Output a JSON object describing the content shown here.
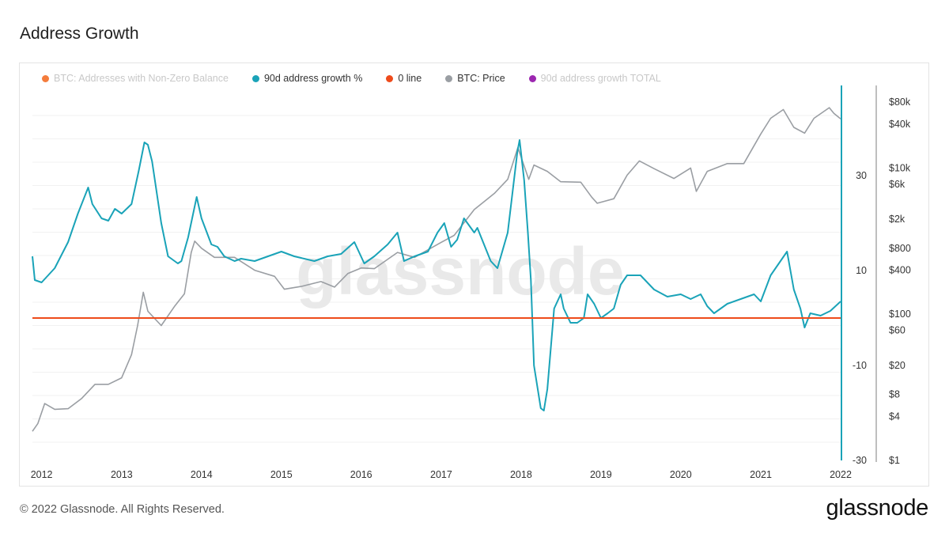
{
  "page": {
    "title": "Address Growth",
    "copyright": "© 2022 Glassnode. All Rights Reserved.",
    "brand": "glassnode",
    "watermark": "glassnode"
  },
  "legend": [
    {
      "label": "BTC: Addresses with Non-Zero Balance",
      "color": "#f47c3c",
      "active": false
    },
    {
      "label": "90d address growth %",
      "color": "#1aa3b8",
      "active": true
    },
    {
      "label": "0 line",
      "color": "#ee4b1b",
      "active": true
    },
    {
      "label": "BTC: Price",
      "color": "#9a9ea3",
      "active": true
    },
    {
      "label": "90d address growth TOTAL",
      "color": "#9c27b0",
      "active": false
    }
  ],
  "chart_data": {
    "type": "line",
    "title": "Address Growth",
    "x_ticks": [
      "2012",
      "2013",
      "2014",
      "2015",
      "2016",
      "2017",
      "2018",
      "2019",
      "2020",
      "2021",
      "2022"
    ],
    "xlim": [
      "2011-11-20",
      "2022-01-01"
    ],
    "y_left_ticks": [
      30,
      10,
      -10,
      -30
    ],
    "y_left_lim": [
      -30,
      47
    ],
    "y_right_ticks": [
      "$80k",
      "$40k",
      "$10k",
      "$6k",
      "$2k",
      "$800",
      "$400",
      "$100",
      "$60",
      "$20",
      "$8",
      "$4",
      "$1"
    ],
    "y_right_values": [
      80000,
      40000,
      10000,
      6000,
      2000,
      800,
      400,
      100,
      60,
      20,
      8,
      4,
      1
    ],
    "y_right_scale": "log",
    "y_right_lim": [
      1,
      100000
    ],
    "grid": true,
    "legend_position": "top-left",
    "series": [
      {
        "name": "90d address growth %",
        "axis": "left",
        "color": "#1aa3b8",
        "points": [
          [
            "2011-11-20",
            13.0
          ],
          [
            "2011-12-01",
            8.0
          ],
          [
            "2012-01-01",
            7.5
          ],
          [
            "2012-03-01",
            10.5
          ],
          [
            "2012-05-01",
            16.0
          ],
          [
            "2012-06-15",
            22.0
          ],
          [
            "2012-08-01",
            27.5
          ],
          [
            "2012-08-20",
            24.0
          ],
          [
            "2012-10-01",
            21.0
          ],
          [
            "2012-11-01",
            20.5
          ],
          [
            "2012-12-01",
            23.0
          ],
          [
            "2013-01-01",
            22.0
          ],
          [
            "2013-02-15",
            24.0
          ],
          [
            "2013-03-20",
            31.0
          ],
          [
            "2013-04-15",
            37.0
          ],
          [
            "2013-05-01",
            36.5
          ],
          [
            "2013-05-20",
            33.0
          ],
          [
            "2013-07-01",
            20.0
          ],
          [
            "2013-08-01",
            13.0
          ],
          [
            "2013-09-15",
            11.5
          ],
          [
            "2013-10-01",
            12.0
          ],
          [
            "2013-11-01",
            17.0
          ],
          [
            "2013-12-10",
            25.5
          ],
          [
            "2014-01-01",
            21.0
          ],
          [
            "2014-02-15",
            15.5
          ],
          [
            "2014-03-15",
            15.0
          ],
          [
            "2014-04-15",
            13.0
          ],
          [
            "2014-06-01",
            12.0
          ],
          [
            "2014-07-01",
            12.5
          ],
          [
            "2014-09-01",
            12.0
          ],
          [
            "2014-11-01",
            13.0
          ],
          [
            "2015-01-01",
            14.0
          ],
          [
            "2015-03-01",
            13.0
          ],
          [
            "2015-06-01",
            12.0
          ],
          [
            "2015-08-01",
            13.0
          ],
          [
            "2015-10-01",
            13.5
          ],
          [
            "2015-12-01",
            16.0
          ],
          [
            "2016-01-15",
            11.5
          ],
          [
            "2016-03-01",
            13.0
          ],
          [
            "2016-05-01",
            15.5
          ],
          [
            "2016-06-15",
            18.0
          ],
          [
            "2016-07-15",
            12.0
          ],
          [
            "2016-09-01",
            13.0
          ],
          [
            "2016-11-01",
            14.0
          ],
          [
            "2016-12-15",
            18.0
          ],
          [
            "2017-01-15",
            20.0
          ],
          [
            "2017-02-15",
            15.0
          ],
          [
            "2017-03-15",
            16.5
          ],
          [
            "2017-04-15",
            21.0
          ],
          [
            "2017-06-01",
            18.0
          ],
          [
            "2017-06-15",
            19.0
          ],
          [
            "2017-08-15",
            12.0
          ],
          [
            "2017-09-15",
            10.5
          ],
          [
            "2017-11-01",
            18.0
          ],
          [
            "2017-12-15",
            35.0
          ],
          [
            "2017-12-25",
            37.5
          ],
          [
            "2018-01-15",
            29.0
          ],
          [
            "2018-02-01",
            18.0
          ],
          [
            "2018-02-15",
            8.0
          ],
          [
            "2018-03-01",
            -10.0
          ],
          [
            "2018-04-01",
            -19.0
          ],
          [
            "2018-04-15",
            -19.5
          ],
          [
            "2018-05-01",
            -15.0
          ],
          [
            "2018-06-01",
            2.0
          ],
          [
            "2018-07-01",
            5.0
          ],
          [
            "2018-07-15",
            2.0
          ],
          [
            "2018-08-15",
            -1.0
          ],
          [
            "2018-09-15",
            -1.0
          ],
          [
            "2018-10-15",
            0.0
          ],
          [
            "2018-11-01",
            5.0
          ],
          [
            "2018-12-01",
            3.0
          ],
          [
            "2019-01-01",
            0.0
          ],
          [
            "2019-02-01",
            1.0
          ],
          [
            "2019-03-01",
            2.0
          ],
          [
            "2019-04-01",
            7.0
          ],
          [
            "2019-05-01",
            9.0
          ],
          [
            "2019-07-01",
            9.0
          ],
          [
            "2019-09-01",
            6.0
          ],
          [
            "2019-11-01",
            4.5
          ],
          [
            "2020-01-01",
            5.0
          ],
          [
            "2020-02-15",
            4.0
          ],
          [
            "2020-04-01",
            5.0
          ],
          [
            "2020-05-01",
            2.5
          ],
          [
            "2020-06-01",
            1.0
          ],
          [
            "2020-08-01",
            3.0
          ],
          [
            "2020-10-01",
            4.0
          ],
          [
            "2020-12-01",
            5.0
          ],
          [
            "2021-01-01",
            3.5
          ],
          [
            "2021-02-15",
            9.0
          ],
          [
            "2021-05-01",
            14.0
          ],
          [
            "2021-06-01",
            6.0
          ],
          [
            "2021-07-01",
            2.0
          ],
          [
            "2021-07-20",
            -2.0
          ],
          [
            "2021-08-15",
            1.0
          ],
          [
            "2021-10-01",
            0.5
          ],
          [
            "2021-11-15",
            1.5
          ],
          [
            "2022-01-01",
            3.5
          ]
        ]
      },
      {
        "name": "0 line",
        "axis": "left",
        "color": "#ee4b1b",
        "points": [
          [
            "2011-11-20",
            0
          ],
          [
            "2022-01-01",
            0
          ]
        ]
      },
      {
        "name": "BTC: Price",
        "axis": "right",
        "color": "#9a9ea3",
        "points": [
          [
            "2011-11-20",
            2.5
          ],
          [
            "2011-12-15",
            3.2
          ],
          [
            "2012-01-15",
            6.0
          ],
          [
            "2012-03-01",
            5.0
          ],
          [
            "2012-05-01",
            5.1
          ],
          [
            "2012-07-01",
            7.0
          ],
          [
            "2012-09-01",
            11.0
          ],
          [
            "2012-11-01",
            11.0
          ],
          [
            "2013-01-01",
            13.5
          ],
          [
            "2013-02-15",
            28.0
          ],
          [
            "2013-03-15",
            70.0
          ],
          [
            "2013-04-10",
            200.0
          ],
          [
            "2013-05-01",
            110.0
          ],
          [
            "2013-07-01",
            70.0
          ],
          [
            "2013-09-01",
            130.0
          ],
          [
            "2013-10-15",
            190.0
          ],
          [
            "2013-11-15",
            700.0
          ],
          [
            "2013-12-01",
            1000.0
          ],
          [
            "2014-01-01",
            800.0
          ],
          [
            "2014-03-01",
            600.0
          ],
          [
            "2014-06-01",
            600.0
          ],
          [
            "2014-09-01",
            400.0
          ],
          [
            "2014-12-01",
            330.0
          ],
          [
            "2015-01-15",
            220.0
          ],
          [
            "2015-04-01",
            240.0
          ],
          [
            "2015-07-01",
            280.0
          ],
          [
            "2015-09-01",
            235.0
          ],
          [
            "2015-11-01",
            360.0
          ],
          [
            "2016-01-01",
            430.0
          ],
          [
            "2016-03-01",
            420.0
          ],
          [
            "2016-06-15",
            700.0
          ],
          [
            "2016-09-01",
            600.0
          ],
          [
            "2016-12-31",
            960.0
          ],
          [
            "2017-03-01",
            1200.0
          ],
          [
            "2017-06-01",
            2700.0
          ],
          [
            "2017-09-01",
            4500.0
          ],
          [
            "2017-11-01",
            7000.0
          ],
          [
            "2017-12-17",
            19000.0
          ],
          [
            "2018-02-05",
            7000.0
          ],
          [
            "2018-03-01",
            11000.0
          ],
          [
            "2018-05-01",
            9000.0
          ],
          [
            "2018-07-01",
            6500.0
          ],
          [
            "2018-10-01",
            6400.0
          ],
          [
            "2018-11-20",
            4000.0
          ],
          [
            "2018-12-15",
            3300.0
          ],
          [
            "2019-03-01",
            3800.0
          ],
          [
            "2019-05-01",
            8000.0
          ],
          [
            "2019-06-26",
            12500.0
          ],
          [
            "2019-09-01",
            9800.0
          ],
          [
            "2019-12-01",
            7200.0
          ],
          [
            "2020-02-15",
            10000.0
          ],
          [
            "2020-03-12",
            4800.0
          ],
          [
            "2020-05-01",
            9000.0
          ],
          [
            "2020-08-01",
            11500.0
          ],
          [
            "2020-10-15",
            11500.0
          ],
          [
            "2020-12-31",
            29000.0
          ],
          [
            "2021-02-15",
            48000.0
          ],
          [
            "2021-04-14",
            63000.0
          ],
          [
            "2021-06-01",
            36000.0
          ],
          [
            "2021-07-20",
            30000.0
          ],
          [
            "2021-09-01",
            48000.0
          ],
          [
            "2021-11-10",
            67000.0
          ],
          [
            "2021-12-01",
            56000.0
          ],
          [
            "2022-01-01",
            47000.0
          ]
        ]
      }
    ]
  }
}
